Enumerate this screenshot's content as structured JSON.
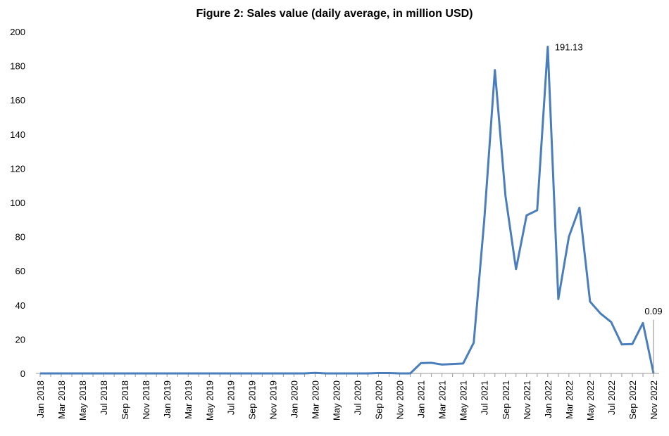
{
  "chart_data": {
    "type": "line",
    "title": "Figure 2: Sales value (daily average, in million USD)",
    "categories": [
      "Jan 2018",
      null,
      "Mar 2018",
      null,
      "May 2018",
      null,
      "Jul 2018",
      null,
      "Sep 2018",
      null,
      "Nov 2018",
      null,
      "Jan 2019",
      null,
      "Mar 2019",
      null,
      "May 2019",
      null,
      "Jul 2019",
      null,
      "Sep 2019",
      null,
      "Nov 2019",
      null,
      "Jan 2020",
      null,
      "Mar 2020",
      null,
      "May 2020",
      null,
      "Jul 2020",
      null,
      "Sep 2020",
      null,
      "Nov 2020",
      null,
      "Jan 2021",
      null,
      "Mar 2021",
      null,
      "May 2021",
      null,
      "Jul 2021",
      null,
      "Sep 2021",
      null,
      "Nov 2021",
      null,
      "Jan 2022",
      null,
      "Mar 2022",
      null,
      "May 2022",
      null,
      "Jul 2022",
      null,
      "Sep 2022",
      null,
      "Nov 2022"
    ],
    "series": [
      {
        "name": "Sales value",
        "color": "#4a7ebb",
        "values": [
          0,
          0,
          0,
          0,
          0,
          0,
          0,
          0,
          0,
          0,
          0,
          0,
          0,
          0,
          0,
          0,
          0,
          0,
          0,
          0,
          0,
          0,
          0,
          0,
          0,
          0,
          0.3,
          0,
          0,
          0,
          0,
          0,
          0.2,
          0.2,
          0,
          0,
          6,
          6.2,
          5.2,
          5.5,
          5.8,
          18,
          90,
          177.5,
          104,
          61,
          92.5,
          95.5,
          191.13,
          43.5,
          80,
          97,
          42,
          35,
          30,
          17,
          17.2,
          29.5,
          0.09
        ],
        "value_labels": [
          null,
          null,
          null,
          null,
          null,
          null,
          null,
          null,
          null,
          null,
          null,
          null,
          null,
          null,
          null,
          null,
          null,
          null,
          null,
          null,
          null,
          null,
          null,
          null,
          null,
          null,
          null,
          null,
          null,
          null,
          null,
          null,
          null,
          null,
          null,
          null,
          null,
          null,
          null,
          null,
          null,
          null,
          null,
          null,
          null,
          null,
          null,
          null,
          "191.13",
          null,
          null,
          null,
          null,
          null,
          null,
          null,
          null,
          null,
          "0.09"
        ]
      }
    ],
    "ylim": [
      0,
      200
    ],
    "yticks": [
      0,
      20,
      40,
      60,
      80,
      100,
      120,
      140,
      160,
      180,
      200
    ],
    "grid": false
  }
}
